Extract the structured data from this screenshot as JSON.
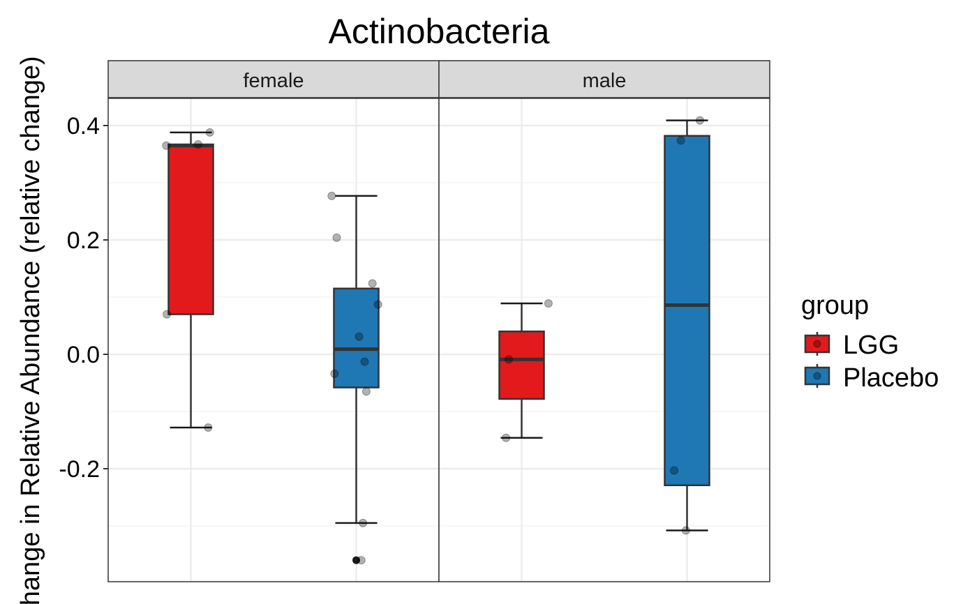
{
  "chart_data": {
    "type": "box",
    "title": "Actinobacteria",
    "ylabel": "Change in Relative Abundance (relative change)",
    "xlabel": "",
    "ylim": [
      -0.4,
      0.46
    ],
    "y_ticks": [
      0.4,
      0.2,
      0.0,
      -0.2
    ],
    "y_tick_labels": [
      "0.4",
      "0.2",
      "0.0",
      "-0.2"
    ],
    "facets": [
      "female",
      "male"
    ],
    "groups": [
      "LGG",
      "Placebo"
    ],
    "legend": {
      "title": "group",
      "position": "right",
      "items": [
        {
          "label": "LGG",
          "color": "#E31A1C"
        },
        {
          "label": "Placebo",
          "color": "#1F78B4"
        }
      ]
    },
    "grid": true,
    "series": [
      {
        "facet": "female",
        "group": "LGG",
        "color": "#E31A1C",
        "box": {
          "q1": 0.07,
          "median": 0.365,
          "q3": 0.367,
          "whisker_low": -0.128,
          "whisker_high": 0.388
        },
        "outliers": [],
        "points": [
          {
            "dx": -0.44,
            "y": 0.365
          },
          {
            "dx": 0.13,
            "y": 0.367
          },
          {
            "dx": 0.34,
            "y": 0.388
          },
          {
            "dx": -0.43,
            "y": 0.07
          },
          {
            "dx": 0.31,
            "y": -0.128
          }
        ]
      },
      {
        "facet": "female",
        "group": "Placebo",
        "color": "#1F78B4",
        "box": {
          "q1": -0.058,
          "median": 0.009,
          "q3": 0.115,
          "whisker_low": -0.295,
          "whisker_high": 0.277
        },
        "outliers": [
          -0.36
        ],
        "points": [
          {
            "dx": -0.44,
            "y": 0.277
          },
          {
            "dx": -0.35,
            "y": 0.204
          },
          {
            "dx": 0.29,
            "y": 0.124
          },
          {
            "dx": 0.39,
            "y": 0.087
          },
          {
            "dx": 0.05,
            "y": 0.031
          },
          {
            "dx": 0.15,
            "y": -0.013
          },
          {
            "dx": -0.39,
            "y": -0.034
          },
          {
            "dx": 0.18,
            "y": -0.065
          },
          {
            "dx": 0.12,
            "y": -0.295
          },
          {
            "dx": 0.09,
            "y": -0.36
          }
        ]
      },
      {
        "facet": "male",
        "group": "LGG",
        "color": "#E31A1C",
        "box": {
          "q1": -0.078,
          "median": -0.009,
          "q3": 0.04,
          "whisker_low": -0.146,
          "whisker_high": 0.089
        },
        "outliers": [],
        "points": [
          {
            "dx": 0.48,
            "y": 0.089
          },
          {
            "dx": -0.23,
            "y": -0.009
          },
          {
            "dx": -0.28,
            "y": -0.146
          }
        ]
      },
      {
        "facet": "male",
        "group": "Placebo",
        "color": "#1F78B4",
        "box": {
          "q1": -0.229,
          "median": 0.086,
          "q3": 0.382,
          "whisker_low": -0.308,
          "whisker_high": 0.409
        },
        "outliers": [],
        "points": [
          {
            "dx": 0.23,
            "y": 0.409
          },
          {
            "dx": -0.11,
            "y": 0.374
          },
          {
            "dx": -0.23,
            "y": -0.203
          },
          {
            "dx": -0.02,
            "y": -0.308
          }
        ]
      }
    ]
  }
}
